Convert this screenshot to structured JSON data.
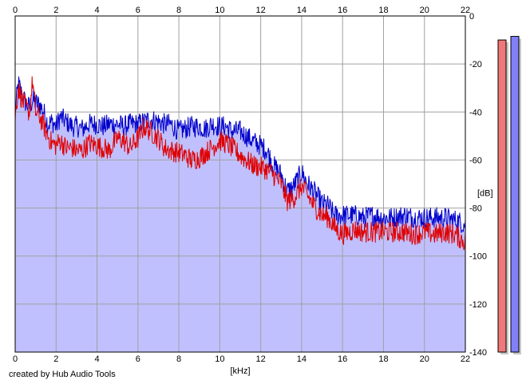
{
  "footer": {
    "credit": "created by Hub Audio Tools"
  },
  "chart_data": {
    "type": "area",
    "xlabel": "[kHz]",
    "ylabel": "[dB]",
    "xlim": [
      0,
      22
    ],
    "ylim": [
      -140,
      0
    ],
    "x_ticks": [
      0,
      2,
      4,
      6,
      8,
      10,
      12,
      14,
      16,
      18,
      20,
      22
    ],
    "y_ticks": [
      0,
      -20,
      -40,
      -60,
      -80,
      -100,
      -120,
      -140
    ],
    "grid": true,
    "plot_background": "#ffffff",
    "fill_color": "#c0c0ff",
    "series": [
      {
        "color": "#0000cc",
        "x": [
          0,
          0.15,
          0.3,
          0.5,
          0.7,
          0.85,
          1.0,
          1.2,
          1.4,
          1.6,
          1.8,
          2.0,
          2.2,
          2.5,
          2.8,
          3.0,
          3.3,
          3.6,
          4.0,
          4.3,
          4.6,
          5.0,
          5.3,
          5.6,
          6.0,
          6.3,
          6.6,
          7.0,
          7.3,
          7.6,
          8.0,
          8.3,
          8.6,
          9.0,
          9.3,
          9.6,
          10.0,
          10.3,
          10.6,
          11.0,
          11.3,
          11.6,
          12.0,
          12.3,
          12.6,
          13.0,
          13.3,
          13.6,
          14.0,
          14.3,
          14.6,
          15.0,
          15.3,
          15.6,
          16.0,
          16.3,
          16.6,
          17.0,
          17.5,
          18.0,
          18.5,
          19.0,
          19.5,
          20.0,
          20.5,
          21.0,
          21.5,
          21.8,
          22.0
        ],
        "y": [
          -40,
          -28,
          -32,
          -36,
          -38,
          -35,
          -36,
          -37,
          -40,
          -45,
          -44,
          -46,
          -42,
          -44,
          -46,
          -46,
          -47,
          -45,
          -45,
          -46,
          -45,
          -45,
          -46,
          -45,
          -45,
          -44,
          -43,
          -44,
          -45,
          -45,
          -48,
          -47,
          -46,
          -46,
          -47,
          -45,
          -46,
          -46,
          -48,
          -48,
          -50,
          -52,
          -54,
          -56,
          -62,
          -66,
          -73,
          -71,
          -65,
          -70,
          -73,
          -78,
          -79,
          -83,
          -83,
          -83,
          -83,
          -84,
          -83,
          -84,
          -84,
          -83,
          -84,
          -84,
          -84,
          -84,
          -85,
          -86,
          -87
        ]
      },
      {
        "color": "#e00000",
        "x": [
          0,
          0.15,
          0.3,
          0.5,
          0.7,
          0.85,
          1.0,
          1.2,
          1.4,
          1.6,
          1.8,
          2.0,
          2.2,
          2.5,
          2.8,
          3.0,
          3.3,
          3.6,
          4.0,
          4.3,
          4.6,
          5.0,
          5.3,
          5.6,
          6.0,
          6.3,
          6.6,
          7.0,
          7.3,
          7.6,
          8.0,
          8.3,
          8.6,
          9.0,
          9.3,
          9.6,
          10.0,
          10.3,
          10.6,
          11.0,
          11.3,
          11.6,
          12.0,
          12.3,
          12.6,
          13.0,
          13.3,
          13.6,
          14.0,
          14.3,
          14.6,
          15.0,
          15.3,
          15.6,
          16.0,
          16.3,
          16.6,
          17.0,
          17.5,
          18.0,
          18.5,
          19.0,
          19.5,
          20.0,
          20.5,
          21.0,
          21.5,
          21.8,
          22.0
        ],
        "y": [
          -42,
          -30,
          -34,
          -38,
          -40,
          -27,
          -40,
          -42,
          -46,
          -50,
          -53,
          -54,
          -52,
          -55,
          -55,
          -56,
          -56,
          -53,
          -54,
          -55,
          -56,
          -51,
          -52,
          -55,
          -51,
          -46,
          -48,
          -51,
          -55,
          -56,
          -57,
          -58,
          -60,
          -59,
          -57,
          -55,
          -52,
          -53,
          -55,
          -58,
          -60,
          -62,
          -63,
          -64,
          -66,
          -70,
          -77,
          -76,
          -71,
          -75,
          -79,
          -83,
          -84,
          -88,
          -91,
          -90,
          -89,
          -90,
          -90,
          -90,
          -90,
          -90,
          -91,
          -90,
          -91,
          -90,
          -91,
          -93,
          -94
        ]
      }
    ]
  },
  "meters": [
    {
      "name": "left-level-meter",
      "color": "#f07878",
      "level_db": -10
    },
    {
      "name": "right-level-meter",
      "color": "#8080f8",
      "level_db": -8.5
    }
  ]
}
